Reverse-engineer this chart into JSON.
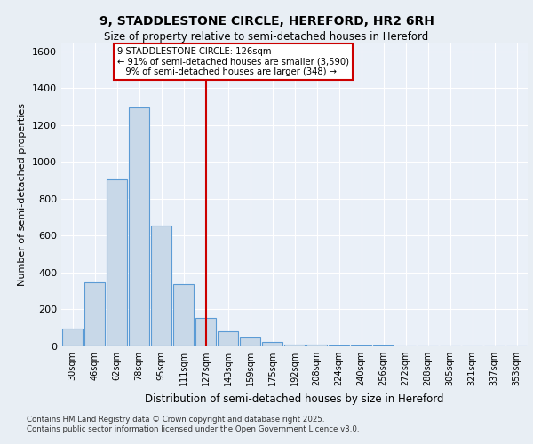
{
  "title_line1": "9, STADDLESTONE CIRCLE, HEREFORD, HR2 6RH",
  "title_line2": "Size of property relative to semi-detached houses in Hereford",
  "xlabel": "Distribution of semi-detached houses by size in Hereford",
  "ylabel": "Number of semi-detached properties",
  "footnote": "Contains HM Land Registry data © Crown copyright and database right 2025.\nContains public sector information licensed under the Open Government Licence v3.0.",
  "categories": [
    "30sqm",
    "46sqm",
    "62sqm",
    "78sqm",
    "95sqm",
    "111sqm",
    "127sqm",
    "143sqm",
    "159sqm",
    "175sqm",
    "192sqm",
    "208sqm",
    "224sqm",
    "240sqm",
    "256sqm",
    "272sqm",
    "288sqm",
    "305sqm",
    "321sqm",
    "337sqm",
    "353sqm"
  ],
  "values": [
    95,
    345,
    905,
    1295,
    655,
    335,
    155,
    80,
    48,
    22,
    10,
    8,
    5,
    4,
    3,
    2,
    1,
    1,
    0,
    0,
    1
  ],
  "bar_color": "#c8d8e8",
  "bar_edge_color": "#5b9bd5",
  "property_line_index": 6,
  "property_label": "9 STADDLESTONE CIRCLE: 126sqm",
  "pct_smaller": "91%",
  "pct_smaller_count": "3,590",
  "pct_larger": "9%",
  "pct_larger_count": "348",
  "annotation_box_color": "#ffffff",
  "annotation_box_edge": "#cc0000",
  "line_color": "#cc0000",
  "ylim": [
    0,
    1650
  ],
  "yticks": [
    0,
    200,
    400,
    600,
    800,
    1000,
    1200,
    1400,
    1600
  ],
  "bg_color": "#e8eef4",
  "plot_bg_color": "#eaf0f8"
}
